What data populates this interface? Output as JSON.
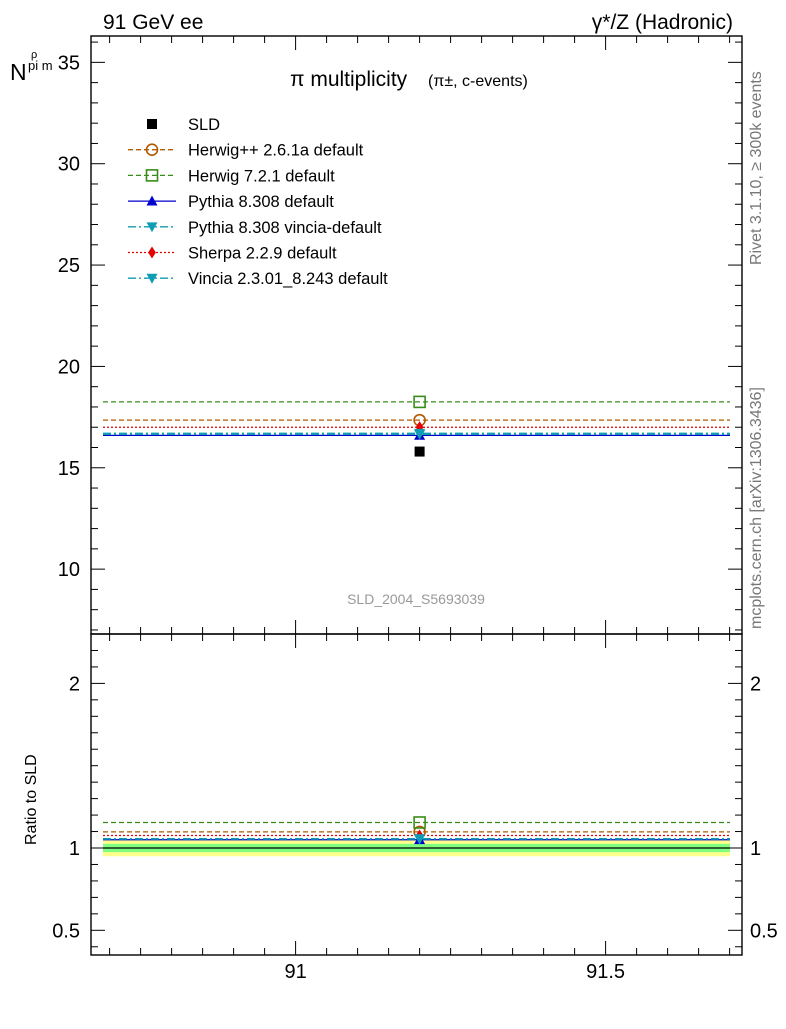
{
  "header": {
    "left": "91 GeV ee",
    "right": "γ*/Z (Hadronic)"
  },
  "side_text": {
    "rivet": "Rivet 3.1.10, ≥ 300k events",
    "mcplots": "mcplots.cern.ch [arXiv:1306.3436]"
  },
  "chart_data": {
    "type": "scatter",
    "title": "π multiplicity",
    "title_suffix": "(π±, c-events)",
    "ylabel_main": "N",
    "ylabel_sub": "pi m",
    "ylabel_sup": "ρ",
    "ylabel_ratio": "Ratio to SLD",
    "watermark": "SLD_2004_S5693039",
    "xlim": [
      90.67,
      91.72
    ],
    "main_ylim": [
      6.8,
      36.3
    ],
    "ratio_ylim": [
      0.35,
      2.3
    ],
    "x_ticks": [
      {
        "v": 91,
        "label": "91"
      },
      {
        "v": 91.5,
        "label": "91.5"
      }
    ],
    "main_y_ticks": [
      {
        "v": 10,
        "label": "10"
      },
      {
        "v": 15,
        "label": "15"
      },
      {
        "v": 20,
        "label": "20"
      },
      {
        "v": 25,
        "label": "25"
      },
      {
        "v": 30,
        "label": "30"
      },
      {
        "v": 35,
        "label": "35"
      }
    ],
    "ratio_y_ticks": [
      {
        "v": 0.5,
        "label": "0.5"
      },
      {
        "v": 1,
        "label": "1"
      },
      {
        "v": 2,
        "label": "2"
      }
    ],
    "data_point": {
      "x": 91.2,
      "y": 15.8
    },
    "band": {
      "inner": [
        0.975,
        1.025
      ],
      "outer": [
        0.95,
        1.05
      ],
      "inner_color": "#7fff7f",
      "outer_color": "#ffff8c"
    },
    "series": [
      {
        "name": "SLD",
        "value": 15.8,
        "ratio": 1.0,
        "color": "#000000",
        "marker": "square-filled",
        "dash": "none"
      },
      {
        "name": "Herwig++ 2.6.1a default",
        "value": 17.35,
        "ratio": 1.098,
        "color": "#b35900",
        "marker": "circle-open",
        "dash": "5,3"
      },
      {
        "name": "Herwig 7.2.1 default",
        "value": 18.25,
        "ratio": 1.155,
        "color": "#3a8c1a",
        "marker": "square-open",
        "dash": "5,3"
      },
      {
        "name": "Pythia 8.308 default",
        "value": 16.6,
        "ratio": 1.05,
        "color": "#0000cc",
        "marker": "triangle-up",
        "dash": "none"
      },
      {
        "name": "Pythia 8.308 vincia-default",
        "value": 16.65,
        "ratio": 1.054,
        "color": "#0f9cb5",
        "marker": "triangle-down",
        "dash": "8,3,2,3"
      },
      {
        "name": "Sherpa 2.2.9 default",
        "value": 17.0,
        "ratio": 1.076,
        "color": "#e60000",
        "marker": "diamond",
        "dash": "2,2"
      },
      {
        "name": "Vincia 2.3.01_8.243 default",
        "value": 16.7,
        "ratio": 1.057,
        "color": "#0f9cb5",
        "marker": "triangle-down",
        "dash": "8,3,2,3"
      }
    ]
  }
}
